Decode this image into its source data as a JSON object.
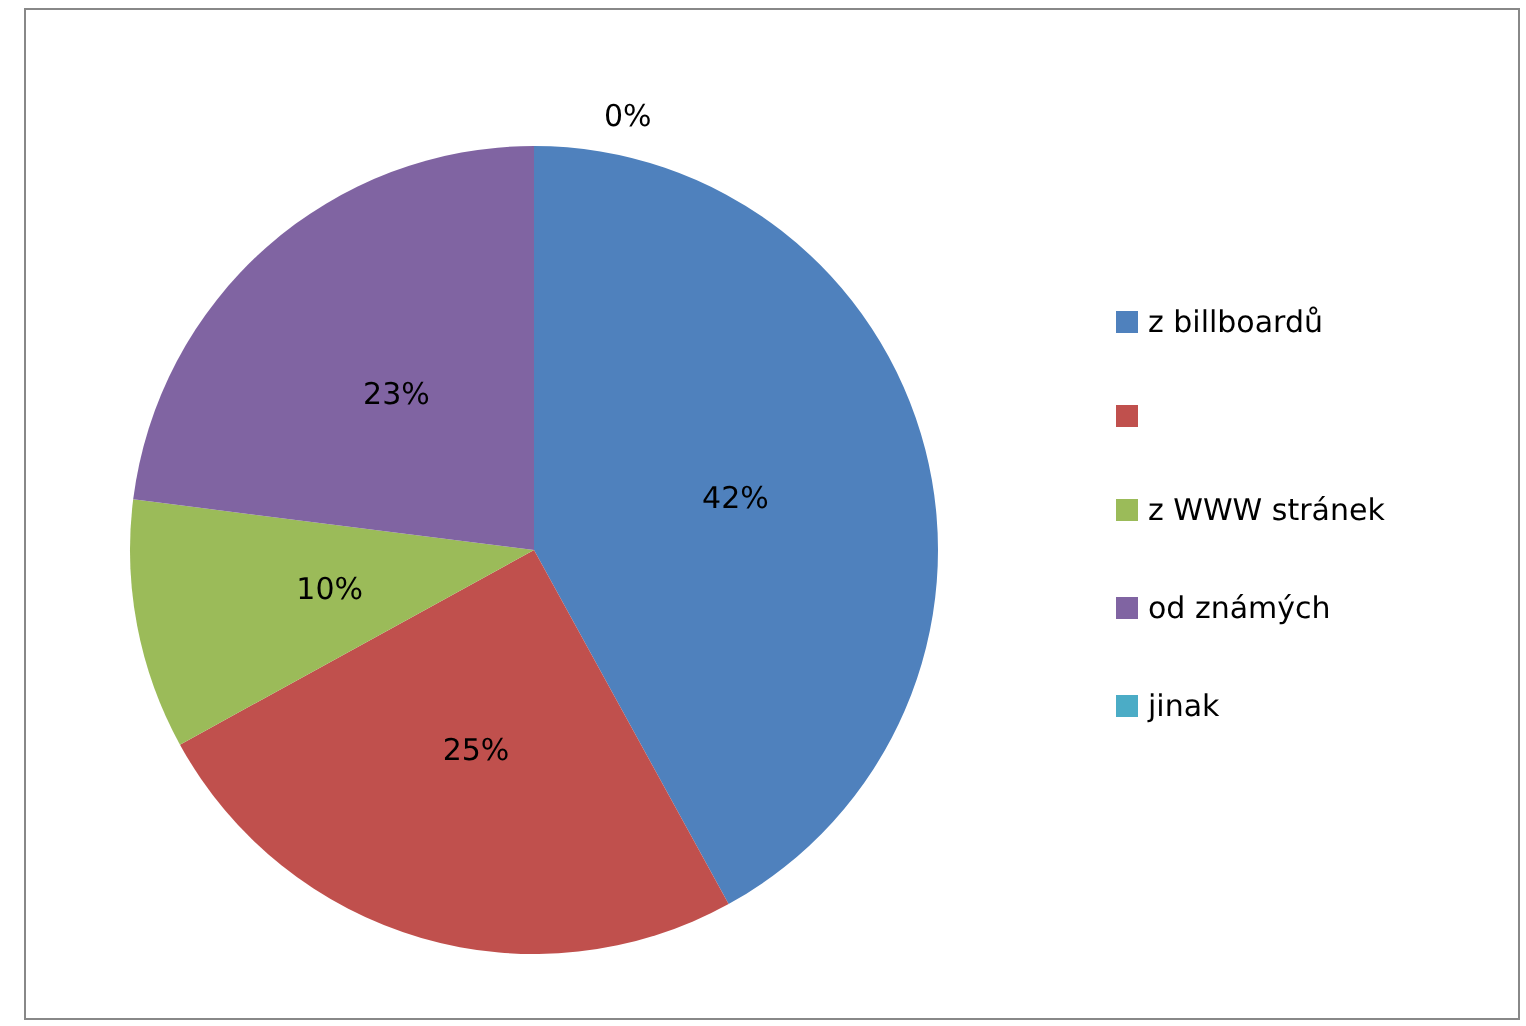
{
  "chart_data": {
    "type": "pie",
    "categories": [
      "z billboardů",
      null,
      "z WWW stránek",
      "od známých",
      "jinak"
    ],
    "values": [
      42,
      25,
      10,
      23,
      0
    ],
    "colors": [
      "#4f81bd",
      "#c0504d",
      "#9bbb59",
      "#8064a2",
      "#4bacc6"
    ],
    "value_labels": [
      "42%",
      "25%",
      "10%",
      "23%",
      "0%"
    ],
    "legend": "right"
  }
}
